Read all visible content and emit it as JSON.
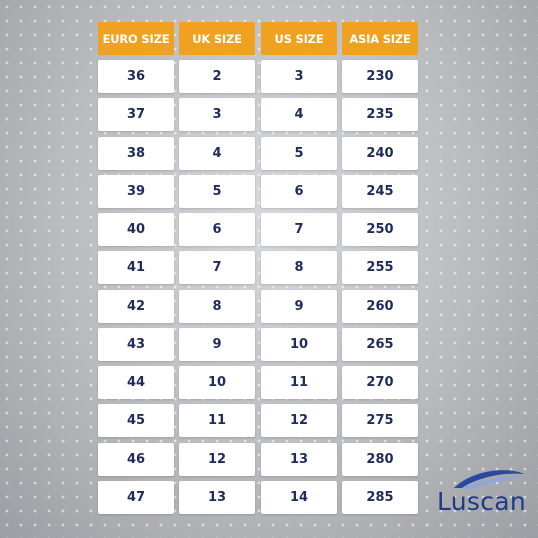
{
  "table": {
    "headers": [
      "EURO SIZE",
      "UK SIZE",
      "US SIZE",
      "ASIA SIZE"
    ],
    "rows": [
      [
        36,
        2,
        3,
        230
      ],
      [
        37,
        3,
        4,
        235
      ],
      [
        38,
        4,
        5,
        240
      ],
      [
        39,
        5,
        6,
        245
      ],
      [
        40,
        6,
        7,
        250
      ],
      [
        41,
        7,
        8,
        255
      ],
      [
        42,
        8,
        9,
        260
      ],
      [
        43,
        9,
        10,
        265
      ],
      [
        44,
        10,
        11,
        270
      ],
      [
        45,
        11,
        12,
        275
      ],
      [
        46,
        12,
        13,
        280
      ],
      [
        47,
        13,
        14,
        285
      ]
    ]
  },
  "logo": {
    "text": "Luscan"
  }
}
